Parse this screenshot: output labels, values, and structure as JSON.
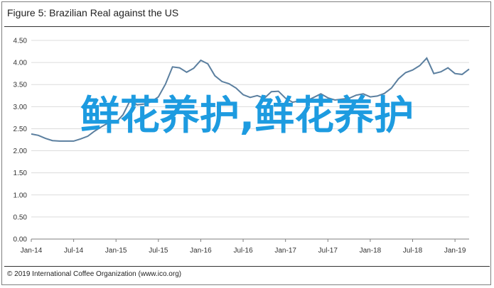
{
  "title": "Figure 5: Brazilian Real against the US",
  "source": "© 2019 International Coffee Organization (www.ico.org)",
  "overlay_text": "鲜花养护,鲜花养护",
  "colors": {
    "line": "#5b7f9f",
    "grid": "#dcdcdc",
    "axis": "#7f7f7f",
    "overlay": "#1d9be0"
  },
  "chart_data": {
    "type": "line",
    "title": "Figure 5: Brazilian Real against the US",
    "xlabel": "",
    "ylabel": "",
    "ylim": [
      0,
      4.5
    ],
    "yticks": [
      "0.00",
      "0.50",
      "1.00",
      "1.50",
      "2.00",
      "2.50",
      "3.00",
      "3.50",
      "4.00",
      "4.50"
    ],
    "xticks": [
      "Jan-14",
      "Jul-14",
      "Jan-15",
      "Jul-15",
      "Jan-16",
      "Jul-16",
      "Jan-17",
      "Jul-17",
      "Jan-18",
      "Jul-18",
      "Jan-19"
    ],
    "grid": true,
    "legend": "none",
    "series": [
      {
        "x": [
          "Jan-14",
          "Feb-14",
          "Mar-14",
          "Apr-14",
          "May-14",
          "Jun-14",
          "Jul-14",
          "Aug-14",
          "Sep-14",
          "Oct-14",
          "Nov-14",
          "Dec-14",
          "Jan-15",
          "Feb-15",
          "Mar-15",
          "Apr-15",
          "May-15",
          "Jun-15",
          "Jul-15",
          "Aug-15",
          "Sep-15",
          "Oct-15",
          "Nov-15",
          "Dec-15",
          "Jan-16",
          "Feb-16",
          "Mar-16",
          "Apr-16",
          "May-16",
          "Jun-16",
          "Jul-16",
          "Aug-16",
          "Sep-16",
          "Oct-16",
          "Nov-16",
          "Dec-16",
          "Jan-17",
          "Feb-17",
          "Mar-17",
          "Apr-17",
          "May-17",
          "Jun-17",
          "Jul-17",
          "Aug-17",
          "Sep-17",
          "Oct-17",
          "Nov-17",
          "Dec-17",
          "Jan-18",
          "Feb-18",
          "Mar-18",
          "Apr-18",
          "May-18",
          "Jun-18",
          "Jul-18",
          "Aug-18",
          "Sep-18",
          "Oct-18",
          "Nov-18",
          "Dec-18",
          "Jan-19",
          "Feb-19",
          "Mar-19"
        ],
        "values": [
          2.38,
          2.35,
          2.28,
          2.23,
          2.22,
          2.22,
          2.22,
          2.27,
          2.33,
          2.45,
          2.55,
          2.64,
          2.64,
          2.82,
          3.14,
          3.04,
          3.06,
          3.11,
          3.22,
          3.51,
          3.9,
          3.88,
          3.78,
          3.87,
          4.05,
          3.97,
          3.7,
          3.57,
          3.52,
          3.42,
          3.27,
          3.21,
          3.25,
          3.19,
          3.34,
          3.35,
          3.19,
          3.1,
          3.13,
          3.13,
          3.21,
          3.29,
          3.2,
          3.15,
          3.17,
          3.19,
          3.26,
          3.29,
          3.22,
          3.24,
          3.3,
          3.42,
          3.63,
          3.77,
          3.83,
          3.93,
          4.1,
          3.75,
          3.79,
          3.88,
          3.75,
          3.73,
          3.85
        ]
      }
    ]
  }
}
